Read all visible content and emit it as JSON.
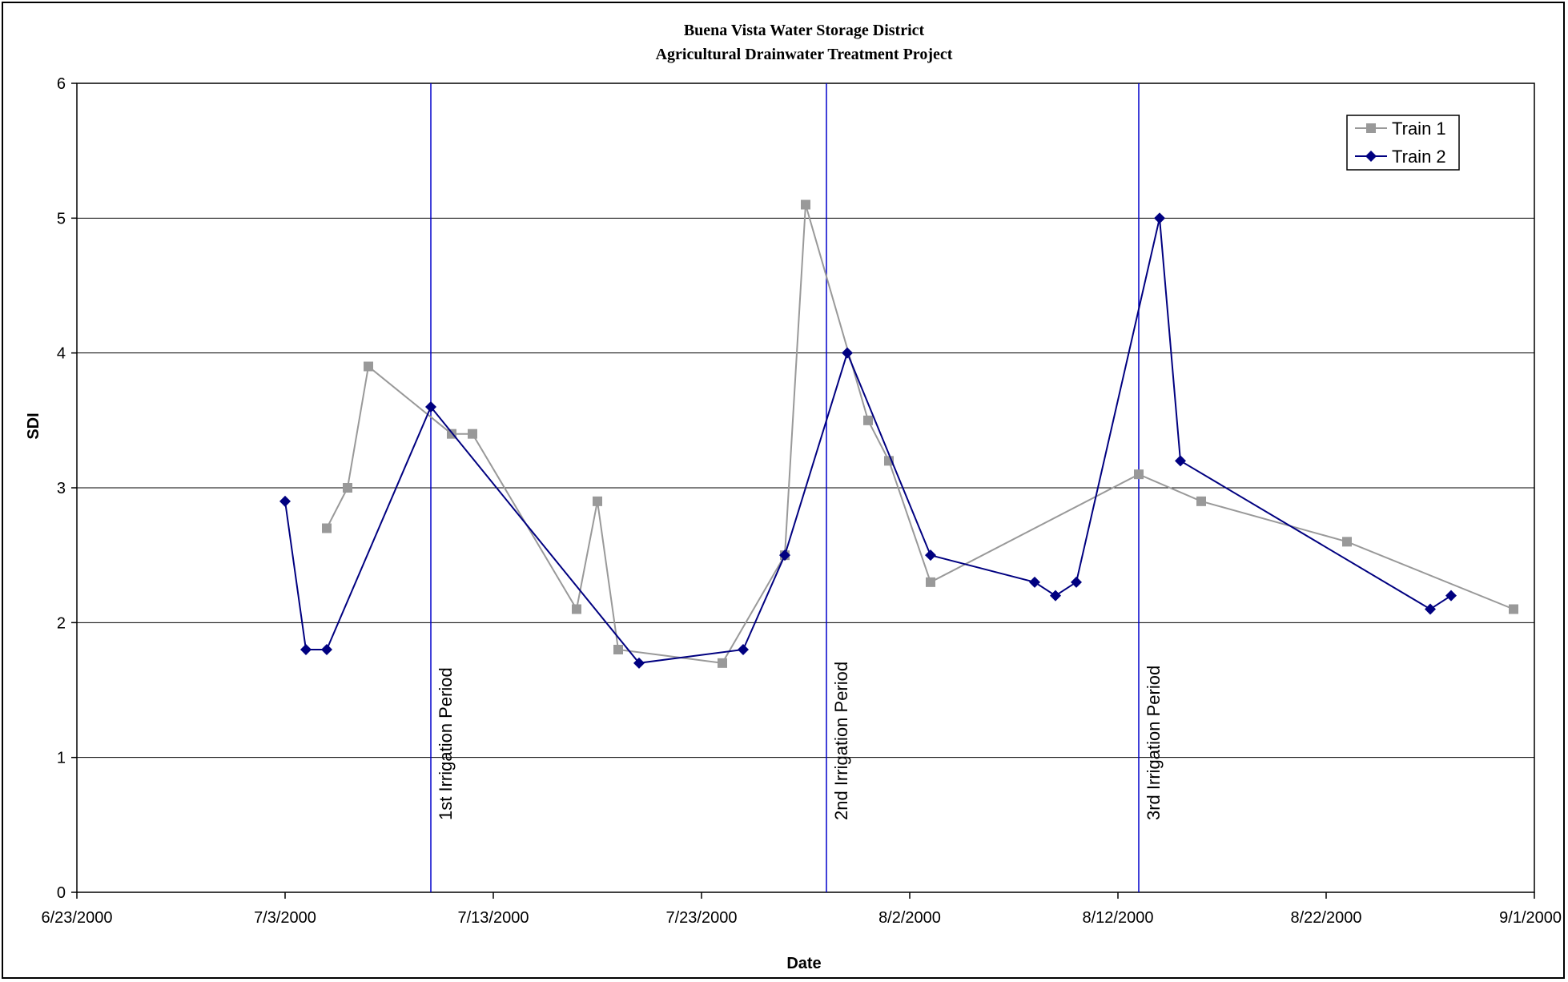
{
  "chart_data": {
    "type": "line",
    "title_line1": "Buena Vista Water Storage District",
    "title_line2": "Agricultural Drainwater Treatment Project",
    "xlabel": "Date",
    "ylabel": "SDI",
    "x_ticks": [
      "6/23/2000",
      "7/3/2000",
      "7/13/2000",
      "7/23/2000",
      "8/2/2000",
      "8/12/2000",
      "8/22/2000",
      "9/1/2000"
    ],
    "y_ticks": [
      "0",
      "1",
      "2",
      "3",
      "4",
      "5",
      "6"
    ],
    "xlim": [
      "6/23/2000",
      "9/1/2000"
    ],
    "ylim": [
      0,
      6
    ],
    "grid": "horizontal",
    "legend_position": "top-right",
    "series": [
      {
        "name": "Train 1",
        "color": "#999999",
        "marker": "square",
        "points": [
          {
            "x": "7/5/2000",
            "y": 2.7
          },
          {
            "x": "7/6/2000",
            "y": 3.0
          },
          {
            "x": "7/7/2000",
            "y": 3.9
          },
          {
            "x": "7/11/2000",
            "y": 3.4
          },
          {
            "x": "7/12/2000",
            "y": 3.4
          },
          {
            "x": "7/17/2000",
            "y": 2.1
          },
          {
            "x": "7/18/2000",
            "y": 2.9
          },
          {
            "x": "7/19/2000",
            "y": 1.8
          },
          {
            "x": "7/24/2000",
            "y": 1.7
          },
          {
            "x": "7/27/2000",
            "y": 2.5
          },
          {
            "x": "7/28/2000",
            "y": 5.1
          },
          {
            "x": "7/31/2000",
            "y": 3.5
          },
          {
            "x": "8/1/2000",
            "y": 3.2
          },
          {
            "x": "8/3/2000",
            "y": 2.3
          },
          {
            "x": "8/13/2000",
            "y": 3.1
          },
          {
            "x": "8/16/2000",
            "y": 2.9
          },
          {
            "x": "8/23/2000",
            "y": 2.6
          },
          {
            "x": "8/31/2000",
            "y": 2.1
          }
        ]
      },
      {
        "name": "Train 2",
        "color": "#000080",
        "marker": "diamond",
        "points": [
          {
            "x": "7/3/2000",
            "y": 2.9
          },
          {
            "x": "7/4/2000",
            "y": 1.8
          },
          {
            "x": "7/5/2000",
            "y": 1.8
          },
          {
            "x": "7/10/2000",
            "y": 3.6
          },
          {
            "x": "7/20/2000",
            "y": 1.7
          },
          {
            "x": "7/25/2000",
            "y": 1.8
          },
          {
            "x": "7/27/2000",
            "y": 2.5
          },
          {
            "x": "7/30/2000",
            "y": 4.0
          },
          {
            "x": "8/3/2000",
            "y": 2.5
          },
          {
            "x": "8/8/2000",
            "y": 2.3
          },
          {
            "x": "8/9/2000",
            "y": 2.2
          },
          {
            "x": "8/10/2000",
            "y": 2.3
          },
          {
            "x": "8/14/2000",
            "y": 5.0
          },
          {
            "x": "8/15/2000",
            "y": 3.2
          },
          {
            "x": "8/27/2000",
            "y": 2.1
          },
          {
            "x": "8/28/2000",
            "y": 2.2
          }
        ]
      }
    ],
    "annotations": [
      {
        "label": "1st Irrigation Period",
        "x": "7/10/2000",
        "color": "#0000CC"
      },
      {
        "label": "2nd Irrigation Period",
        "x": "7/29/2000",
        "color": "#0000CC"
      },
      {
        "label": "3rd Irrigation Period",
        "x": "8/13/2000",
        "color": "#0000CC"
      }
    ]
  }
}
